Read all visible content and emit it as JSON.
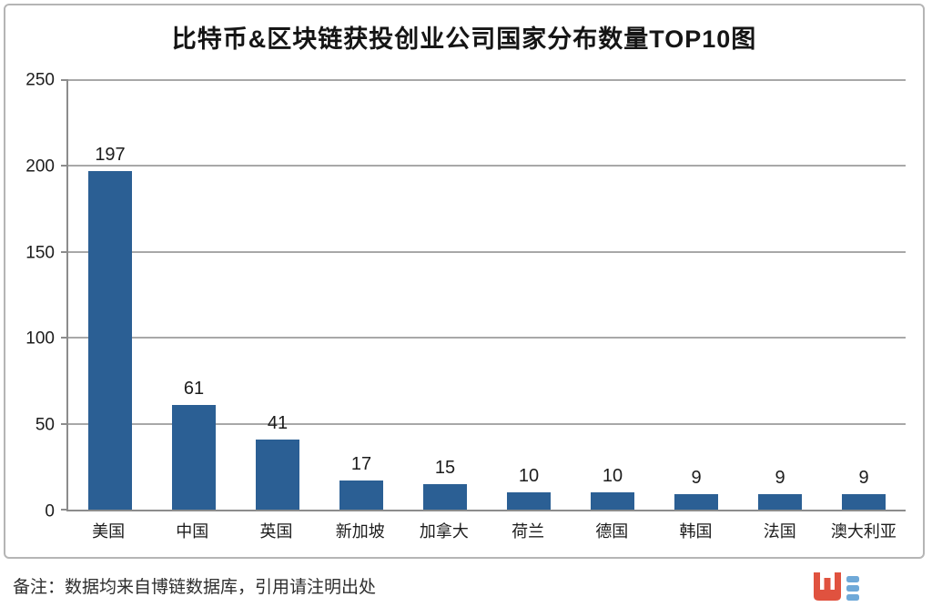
{
  "title": "比特币&区块链获投创业公司国家分布数量TOP10图",
  "footer": {
    "note": "备注：数据均来自博链数据库，引用请注明出处"
  },
  "logo": {
    "name": "bolian-logo",
    "red": "#E0523F",
    "blue": "#6FA9D8"
  },
  "colors": {
    "bar": "#2B5F94",
    "grid": "#a8a8a8",
    "axis": "#8c8c8c",
    "frame": "#b5b5b5",
    "text": "#1c1c1c"
  },
  "chart_data": {
    "type": "bar",
    "title": "比特币&区块链获投创业公司国家分布数量TOP10图",
    "categories": [
      "美国",
      "中国",
      "英国",
      "新加坡",
      "加拿大",
      "荷兰",
      "德国",
      "韩国",
      "法国",
      "澳大利亚"
    ],
    "values": [
      197,
      61,
      41,
      17,
      15,
      10,
      10,
      9,
      9,
      9
    ],
    "xlabel": "",
    "ylabel": "",
    "ylim": [
      0,
      250
    ],
    "yticks": [
      0,
      50,
      100,
      150,
      200,
      250
    ],
    "grid": true,
    "legend": false,
    "data_labels": true,
    "bar_color": "#2B5F94",
    "note": "备注：数据均来自博链数据库，引用请注明出处"
  }
}
